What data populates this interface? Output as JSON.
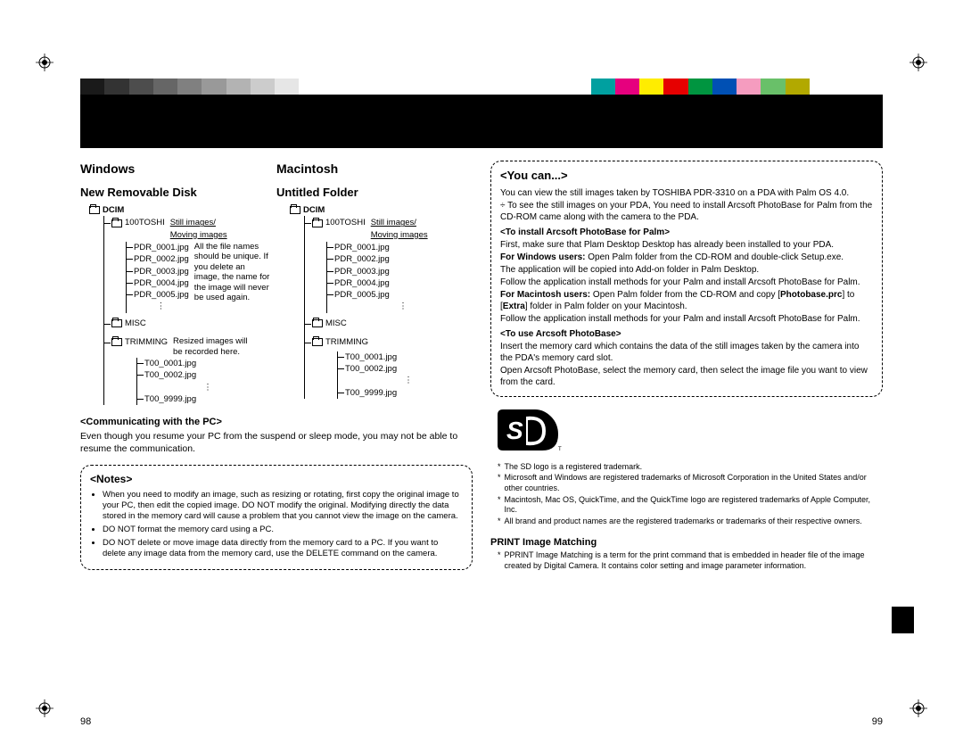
{
  "reg_marks": {
    "positions": [
      "tl",
      "tr",
      "bl",
      "br"
    ],
    "color": "#000000"
  },
  "color_bar": {
    "left_grays": [
      "#1a1a1a",
      "#333333",
      "#4d4d4d",
      "#666666",
      "#808080",
      "#999999",
      "#b3b3b3",
      "#cccccc",
      "#e6e6e6"
    ],
    "right_colors": [
      "#00a0a0",
      "#e6007e",
      "#ffed00",
      "#e60000",
      "#009540",
      "#0050b4",
      "#f59cbf",
      "#69c069",
      "#b2a900"
    ]
  },
  "left": {
    "windows_h": "Windows",
    "mac_h": "Macintosh",
    "win_sub": "New Removable Disk",
    "mac_sub": "Untitled Folder",
    "dcim": "DCIM",
    "toshi": "100TOSHI",
    "still_label": "Still images/\nMoving images",
    "files": [
      "PDR_0001.jpg",
      "PDR_0002.jpg",
      "PDR_0003.jpg",
      "PDR_0004.jpg",
      "PDR_0005.jpg"
    ],
    "dots": "⋮",
    "filename_note": "All the file names should be unique. If you delete an image, the name for the image will never be used again.",
    "misc": "MISC",
    "trimming": "TRIMMING",
    "trim_note": "Resized images will be recorded here.",
    "trim_files_win": [
      "T00_0001.jpg",
      "T00_0002.jpg"
    ],
    "trim_last": "T00_9999.jpg",
    "trim_files_mac": [
      "T00_0001.jpg",
      "T00_0002.jpg"
    ],
    "comm_head": "<Communicating with the PC>",
    "comm_body": "Even though you resume your PC from the suspend or sleep mode, you may not be able to resume the communication.",
    "notes_head": "<Notes>",
    "notes": [
      "When you need to modify an image, such as resizing or rotating, first copy the original image to your PC, then edit the copied image. DO NOT modify the original. Modifying directly the data stored in the memory card will cause a problem that you cannot view the image on the camera.",
      "DO NOT format the memory card using a PC.",
      "DO NOT delete or move image data directly from the memory card to a PC. If you want to delete any image data from the memory card, use the DELETE command on the camera."
    ],
    "page_num": "98"
  },
  "right": {
    "youcan_head": "<You can...>",
    "p0": "You can view the still images taken by TOSHIBA PDR-3310 on a PDA with Palm OS 4.0.",
    "p0b": "÷  To see the still images on your PDA, You need to install Arcsoft PhotoBase for Palm from the CD-ROM came along with the camera to the PDA.",
    "sub1": "<To install Arcsoft PhotoBase for Palm>",
    "p1": "First, make sure that Plam Desktop Desktop has already been installed to your PDA.",
    "p2a": "For Windows users:",
    "p2b": " Open Palm folder from the CD-ROM and double-click Setup.exe.",
    "p3": "The application will be copied into Add-on folder in Palm Desktop.",
    "p4": "Follow the application install methods for your Palm and install Arcsoft PhotoBase for Palm.",
    "p5a": "For Macintosh users:",
    "p5b": " Open Palm folder from the CD-ROM and copy [",
    "p5c": "Photobase.prc",
    "p5d": "] to [",
    "p5e": "Extra",
    "p5f": "] folder in Palm folder on your Macintosh.",
    "p6": "Follow the application install methods for your Palm and install Arcsoft PhotoBase for Palm.",
    "sub2": "<To use Arcsoft PhotoBase>",
    "p7": "Insert the memory card which contains the data of the still images taken by the camera into the PDA's memory card slot.",
    "p8": "Open Arcsoft PhotoBase, select the memory card, then select the image file you want to view from the card.",
    "footnotes": [
      "The SD logo is a registered trademark.",
      "Microsoft and Windows are registered trademarks of Microsoft Corporation in the United States and/or other countries.",
      "Macintosh, Mac OS, QuickTime, and the QuickTime logo are registered trademarks of Apple Computer, Inc.",
      "All brand and product names are the registered trademarks or trademarks of their respective owners."
    ],
    "prim_head": "PRINT Image Matching",
    "prim_body": "PPRINT Image Matching is a term for the print command that is embedded in header file of the image created by Digital Camera. It contains color setting and image parameter information.",
    "page_num": "99"
  }
}
